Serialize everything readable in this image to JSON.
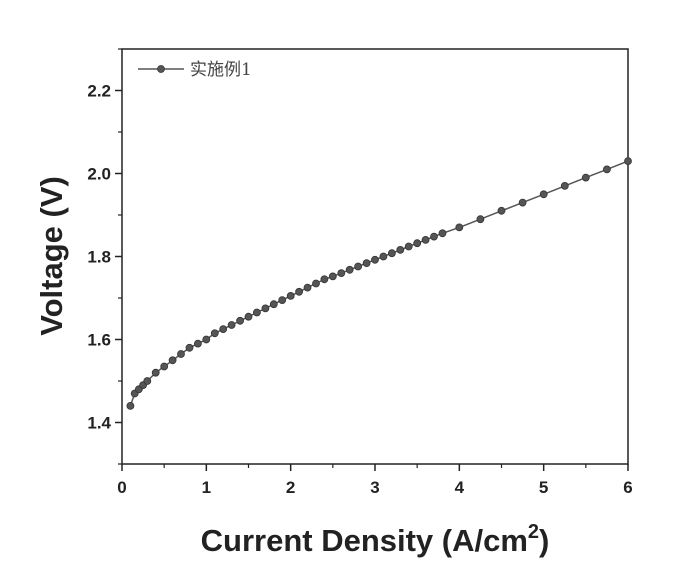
{
  "chart_data": {
    "type": "line",
    "xlabel": "Current Density (A/cm",
    "xlabel_sup": "2",
    "xlabel_close": ")",
    "ylabel": "Voltage (V)",
    "xlim": [
      0,
      6
    ],
    "ylim": [
      1.3,
      2.3
    ],
    "xticks": [
      "0",
      "1",
      "2",
      "3",
      "4",
      "5",
      "6"
    ],
    "yticks": [
      "1.4",
      "1.6",
      "1.8",
      "2.0",
      "2.2"
    ],
    "grid": false,
    "legend_position": "top-left",
    "series": [
      {
        "name": "实施例1",
        "color": "#555555",
        "marker": "circle",
        "x": [
          0.1,
          0.15,
          0.2,
          0.25,
          0.3,
          0.4,
          0.5,
          0.6,
          0.7,
          0.8,
          0.9,
          1.0,
          1.1,
          1.2,
          1.3,
          1.4,
          1.5,
          1.6,
          1.7,
          1.8,
          1.9,
          2.0,
          2.1,
          2.2,
          2.3,
          2.4,
          2.5,
          2.6,
          2.7,
          2.8,
          2.9,
          3.0,
          3.1,
          3.2,
          3.3,
          3.4,
          3.5,
          3.6,
          3.7,
          3.8,
          4.0,
          4.25,
          4.5,
          4.75,
          5.0,
          5.25,
          5.5,
          5.75,
          6.0
        ],
        "y": [
          1.44,
          1.47,
          1.48,
          1.49,
          1.5,
          1.52,
          1.535,
          1.55,
          1.565,
          1.58,
          1.59,
          1.6,
          1.615,
          1.625,
          1.635,
          1.645,
          1.655,
          1.665,
          1.675,
          1.685,
          1.695,
          1.705,
          1.715,
          1.725,
          1.735,
          1.745,
          1.752,
          1.76,
          1.768,
          1.776,
          1.784,
          1.792,
          1.8,
          1.808,
          1.816,
          1.824,
          1.832,
          1.84,
          1.848,
          1.856,
          1.87,
          1.89,
          1.91,
          1.93,
          1.95,
          1.97,
          1.99,
          2.01,
          2.03
        ]
      }
    ]
  }
}
